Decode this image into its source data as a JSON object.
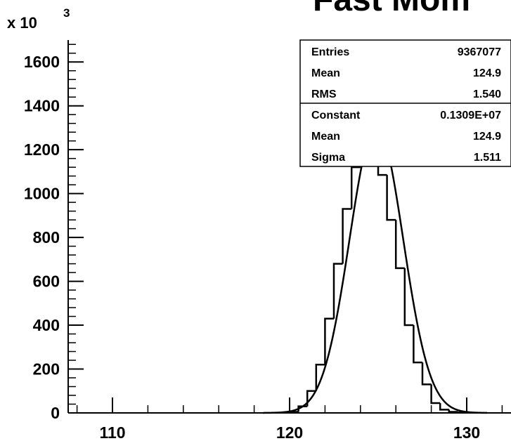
{
  "chart_data": {
    "type": "bar",
    "title": "Fast Mom",
    "y_multiplier_label": "x 10",
    "y_multiplier_exp": "3",
    "xlim": [
      107.5,
      132.5
    ],
    "ylim": [
      0,
      1700
    ],
    "x_ticks": [
      110,
      120,
      130
    ],
    "x_tick_labels": [
      "110",
      "120",
      "130"
    ],
    "y_ticks": [
      0,
      200,
      400,
      600,
      800,
      1000,
      1200,
      1400,
      1600
    ],
    "y_tick_labels": [
      "0",
      "200",
      "400",
      "600",
      "800",
      "1000",
      "1200",
      "1400",
      "1600"
    ],
    "bin_width": 0.5,
    "histogram": {
      "bin_low_edges": [
        119.5,
        120.0,
        120.5,
        121.0,
        121.5,
        122.0,
        122.5,
        123.0,
        123.5,
        124.0,
        124.5,
        125.0,
        125.5,
        126.0,
        126.5,
        127.0,
        127.5,
        128.0,
        128.5,
        129.0,
        129.5,
        130.0
      ],
      "values": [
        1,
        5,
        30,
        100,
        220,
        430,
        680,
        930,
        1120,
        1220,
        1215,
        1085,
        880,
        660,
        400,
        230,
        130,
        45,
        15,
        5,
        2,
        1
      ]
    },
    "fit": {
      "function": "gaus",
      "constant": 1309,
      "mean": 124.9,
      "sigma": 1.511
    },
    "stats_box": {
      "rows_top": [
        {
          "label": "Entries",
          "value": "9367077"
        },
        {
          "label": "Mean",
          "value": "124.9"
        },
        {
          "label": "RMS",
          "value": "1.540"
        }
      ],
      "rows_bottom": [
        {
          "label": "Constant",
          "value": "0.1309E+07"
        },
        {
          "label": "Mean",
          "value": "124.9"
        },
        {
          "label": "Sigma",
          "value": "1.511"
        }
      ]
    }
  }
}
